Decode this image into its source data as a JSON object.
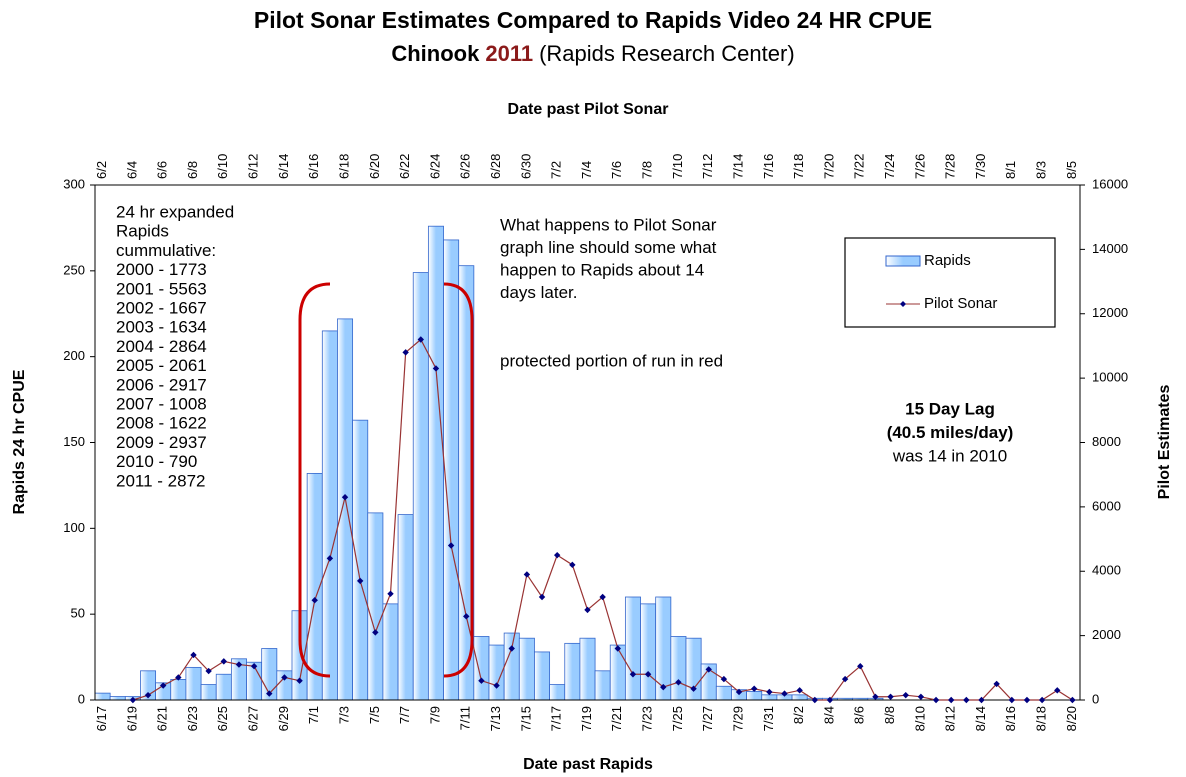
{
  "chart_data": {
    "type": "bar",
    "title": "Pilot Sonar Estimates Compared to Rapids Video 24 HR CPUE",
    "subtitle": [
      "Chinook",
      "2011",
      "(Rapids Research Center)"
    ],
    "subtitle_colors": [
      "#000000",
      "#8b1a1a",
      "#000000"
    ],
    "xlabel": "Date past Rapids",
    "x2label": "Date past Pilot Sonar",
    "ylabel": "Rapids 24 hr CPUE",
    "y2label": "Pilot Estimates",
    "categories": [
      "6/17",
      null,
      "6/19",
      null,
      "6/21",
      null,
      "6/23",
      null,
      "6/25",
      null,
      "6/27",
      null,
      "6/29",
      null,
      "7/1",
      null,
      "7/3",
      null,
      "7/5",
      null,
      "7/7",
      null,
      "7/9",
      null,
      "7/11",
      null,
      "7/13",
      null,
      "7/15",
      null,
      "7/17",
      null,
      "7/19",
      null,
      "7/21",
      null,
      "7/23",
      null,
      "7/25",
      null,
      "7/27",
      null,
      "7/29",
      null,
      "7/31",
      null,
      "8/2",
      null,
      "8/4",
      null,
      "8/6",
      null,
      "8/8",
      null,
      "8/10",
      null,
      "8/12",
      null,
      "8/14",
      null,
      "8/16",
      null,
      "8/18",
      null,
      "8/20"
    ],
    "categories2": [
      "6/2",
      null,
      "6/4",
      null,
      "6/6",
      null,
      "6/8",
      null,
      "6/10",
      null,
      "6/12",
      null,
      "6/14",
      null,
      "6/16",
      null,
      "6/18",
      null,
      "6/20",
      null,
      "6/22",
      null,
      "6/24",
      null,
      "6/26",
      null,
      "6/28",
      null,
      "6/30",
      null,
      "7/2",
      null,
      "7/4",
      null,
      "7/6",
      null,
      "7/8",
      null,
      "7/10",
      null,
      "7/12",
      null,
      "7/14",
      null,
      "7/16",
      null,
      "7/18",
      null,
      "7/20",
      null,
      "7/22",
      null,
      "7/24",
      null,
      "7/26",
      null,
      "7/28",
      null,
      "7/30",
      null,
      "8/1",
      null,
      "8/3",
      null,
      "8/5"
    ],
    "series": [
      {
        "name": "Rapids",
        "type": "bar",
        "color": "#99ccff",
        "axis": "y",
        "values": [
          4,
          2,
          2,
          17,
          10,
          12,
          19,
          9,
          15,
          24,
          22,
          30,
          17,
          52,
          132,
          215,
          222,
          163,
          109,
          56,
          108,
          249,
          276,
          268,
          253,
          37,
          32,
          39,
          36,
          28,
          9,
          33,
          36,
          17,
          32,
          60,
          56,
          60,
          37,
          36,
          21,
          8,
          6,
          5,
          3,
          3,
          3,
          1,
          1,
          1,
          1,
          1,
          0,
          0,
          0,
          0,
          0,
          0,
          0,
          0,
          0,
          0,
          0,
          0,
          0
        ]
      },
      {
        "name": "Pilot Sonar",
        "type": "line",
        "color": "#993333",
        "marker_color": "#000080",
        "axis": "y2",
        "values": [
          null,
          null,
          0,
          150,
          450,
          700,
          1400,
          900,
          1200,
          1100,
          1050,
          200,
          700,
          600,
          3100,
          4400,
          6300,
          3700,
          2100,
          3300,
          10800,
          11200,
          10300,
          4800,
          2600,
          600,
          450,
          1600,
          3900,
          3200,
          4500,
          4200,
          2800,
          3200,
          1600,
          800,
          800,
          400,
          550,
          350,
          950,
          650,
          250,
          350,
          250,
          200,
          300,
          0,
          0,
          650,
          1050,
          100,
          100,
          150,
          100,
          0,
          0,
          0,
          0,
          500,
          0,
          0,
          0,
          300,
          0
        ]
      }
    ],
    "ylim": [
      0,
      300
    ],
    "yticks": [
      0,
      50,
      100,
      150,
      200,
      250,
      300
    ],
    "y2lim": [
      0,
      16000
    ],
    "y2ticks": [
      0,
      2000,
      4000,
      6000,
      8000,
      10000,
      12000,
      14000,
      16000
    ],
    "annotations": {
      "cumulative": [
        "24 hr expanded",
        "Rapids",
        "cummulative:",
        "2000 - 1773",
        "2001 - 5563",
        "2002 - 1667",
        "2003 - 1634",
        "2004 - 2864",
        "2005 - 2061",
        "2006 - 2917",
        "2007 - 1008",
        "2008 - 1622",
        "2009 - 2937",
        "2010 - 790",
        "2011 - 2872"
      ],
      "note": [
        "What happens to Pilot Sonar",
        "graph line should some what",
        "happen to Rapids about 14",
        "days later."
      ],
      "protected": "protected portion of run  in  red",
      "lag": [
        "15 Day Lag",
        "(40.5 miles/day)",
        "was 14 in 2010"
      ],
      "lag_colors": [
        "#000000",
        "#000000",
        "#cc0000"
      ]
    }
  }
}
